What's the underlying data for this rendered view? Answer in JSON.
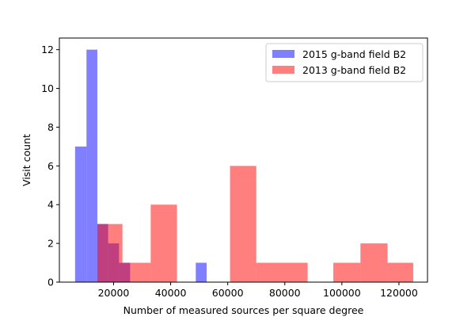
{
  "chart_data": {
    "type": "bar",
    "subtype": "overlaid-histogram",
    "title": "",
    "xlabel": "Number of measured sources per square degree",
    "ylabel": "Visit count",
    "xlim": [
      1000,
      130000
    ],
    "ylim": [
      0,
      12.6
    ],
    "x_ticks": [
      20000,
      40000,
      60000,
      80000,
      100000,
      120000
    ],
    "x_tick_labels": [
      "20000",
      "40000",
      "60000",
      "80000",
      "100000",
      "120000"
    ],
    "y_ticks": [
      0,
      2,
      4,
      6,
      8,
      10,
      12
    ],
    "y_tick_labels": [
      "0",
      "2",
      "4",
      "6",
      "8",
      "10",
      "12"
    ],
    "grid": false,
    "legend_position": "top-right",
    "series": [
      {
        "name": "2015 g-band field B2",
        "color": "#0000ff",
        "alpha": 0.5,
        "bins": [
          {
            "x0": 6500,
            "x1": 10500,
            "count": 7
          },
          {
            "x0": 10500,
            "x1": 14300,
            "count": 12
          },
          {
            "x0": 14300,
            "x1": 18100,
            "count": 3
          },
          {
            "x0": 18100,
            "x1": 21900,
            "count": 2
          },
          {
            "x0": 21900,
            "x1": 25800,
            "count": 1
          },
          {
            "x0": 48800,
            "x1": 52600,
            "count": 1
          }
        ]
      },
      {
        "name": "2013 g-band field B2",
        "color": "#ff0000",
        "alpha": 0.5,
        "bins": [
          {
            "x0": 14300,
            "x1": 18100,
            "count": 3
          },
          {
            "x0": 18100,
            "x1": 23100,
            "count": 3
          },
          {
            "x0": 23100,
            "x1": 25800,
            "count": 1
          },
          {
            "x0": 25800,
            "x1": 33000,
            "count": 1
          },
          {
            "x0": 33000,
            "x1": 42200,
            "count": 4
          },
          {
            "x0": 60800,
            "x1": 70000,
            "count": 6
          },
          {
            "x0": 70000,
            "x1": 88000,
            "count": 1
          },
          {
            "x0": 97000,
            "x1": 106500,
            "count": 1
          },
          {
            "x0": 106500,
            "x1": 116000,
            "count": 2
          },
          {
            "x0": 116000,
            "x1": 125000,
            "count": 1
          }
        ]
      }
    ]
  }
}
